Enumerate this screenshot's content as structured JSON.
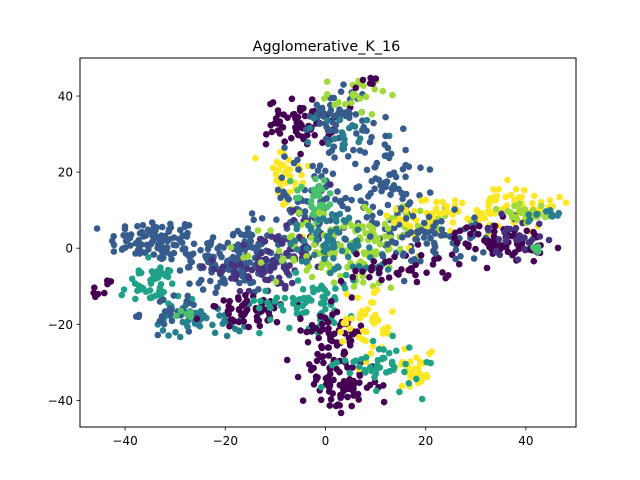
{
  "chart_data": {
    "type": "scatter",
    "title": "Agglomerative_K_16",
    "xlabel": "",
    "ylabel": "",
    "xlim": [
      -49,
      50
    ],
    "ylim": [
      -47,
      50
    ],
    "xticks": [
      -40,
      -20,
      0,
      20,
      40
    ],
    "yticks": [
      -40,
      -20,
      0,
      20,
      40
    ],
    "xtick_labels": [
      "−40",
      "−20",
      "0",
      "20",
      "40"
    ],
    "ytick_labels": [
      "−40",
      "−20",
      "0",
      "20",
      "40"
    ],
    "grid": false,
    "legend": "none",
    "colormap": "viridis",
    "palette": [
      "#440154",
      "#46327e",
      "#365c8d",
      "#277f8e",
      "#1fa187",
      "#4ac16d",
      "#a0da39",
      "#fde725"
    ],
    "clusters": [
      {
        "color": "#365c8d",
        "cx": -34,
        "cy": 2,
        "sx": 4.5,
        "sy": 2.8,
        "n": 90
      },
      {
        "color": "#365c8d",
        "cx": -18,
        "cy": -3,
        "sx": 6,
        "sy": 4.5,
        "n": 170
      },
      {
        "color": "#46327e",
        "cx": -12,
        "cy": -5,
        "sx": 5,
        "sy": 4,
        "n": 60
      },
      {
        "color": "#277f8e",
        "cx": -24,
        "cy": -19,
        "sx": 4.5,
        "sy": 2.2,
        "n": 45
      },
      {
        "color": "#1fa187",
        "cx": -35,
        "cy": -10,
        "sx": 3,
        "sy": 3,
        "n": 45
      },
      {
        "color": "#365c8d",
        "cx": -31,
        "cy": -17,
        "sx": 3,
        "sy": 2.5,
        "n": 25
      },
      {
        "color": "#440154",
        "cx": -45,
        "cy": -10.5,
        "sx": 1,
        "sy": 0.9,
        "n": 8
      },
      {
        "color": "#440154",
        "cx": -14,
        "cy": -17,
        "sx": 5,
        "sy": 2.2,
        "n": 55
      },
      {
        "color": "#4ac16d",
        "cx": -28,
        "cy": -17,
        "sx": 1.2,
        "sy": 1.2,
        "n": 6
      },
      {
        "color": "#440154",
        "cx": -5,
        "cy": 33,
        "sx": 3.3,
        "sy": 3,
        "n": 70
      },
      {
        "color": "#365c8d",
        "cx": 3,
        "cy": 35,
        "sx": 3,
        "sy": 4,
        "n": 55
      },
      {
        "color": "#277f8e",
        "cx": 4,
        "cy": 30,
        "sx": 3,
        "sy": 2.5,
        "n": 20
      },
      {
        "color": "#a0da39",
        "cx": 6,
        "cy": 40,
        "sx": 3,
        "sy": 2.5,
        "n": 22
      },
      {
        "color": "#440154",
        "cx": 8,
        "cy": 43,
        "sx": 1,
        "sy": 1,
        "n": 6
      },
      {
        "color": "#fde725",
        "cx": -8,
        "cy": 18,
        "sx": 2.5,
        "sy": 5,
        "n": 35
      },
      {
        "color": "#365c8d",
        "cx": -3,
        "cy": 12,
        "sx": 5,
        "sy": 6,
        "n": 80
      },
      {
        "color": "#365c8d",
        "cx": 12,
        "cy": 15,
        "sx": 4,
        "sy": 9,
        "n": 90
      },
      {
        "color": "#46327e",
        "cx": -4,
        "cy": 3,
        "sx": 3,
        "sy": 4,
        "n": 40
      },
      {
        "color": "#4ac16d",
        "cx": -2,
        "cy": 13,
        "sx": 2.2,
        "sy": 3.5,
        "n": 30
      },
      {
        "color": "#a0da39",
        "cx": 3,
        "cy": -1,
        "sx": 7,
        "sy": 5,
        "n": 120
      },
      {
        "color": "#277f8e",
        "cx": 6,
        "cy": -3,
        "sx": 4,
        "sy": 3,
        "n": 35
      },
      {
        "color": "#277f8e",
        "cx": 0,
        "cy": 4,
        "sx": 4,
        "sy": 3,
        "n": 40
      },
      {
        "color": "#1fa187",
        "cx": -3,
        "cy": -14,
        "sx": 5,
        "sy": 3.5,
        "n": 70
      },
      {
        "color": "#a0da39",
        "cx": 16,
        "cy": 6,
        "sx": 4,
        "sy": 3,
        "n": 35
      },
      {
        "color": "#440154",
        "cx": 2,
        "cy": -22,
        "sx": 3,
        "sy": 3.5,
        "n": 60
      },
      {
        "color": "#440154",
        "cx": 3,
        "cy": -36,
        "sx": 3.8,
        "sy": 3.5,
        "n": 80
      },
      {
        "color": "#fde725",
        "cx": 8,
        "cy": -20,
        "sx": 3,
        "sy": 5,
        "n": 45
      },
      {
        "color": "#fde725",
        "cx": 18,
        "cy": -31,
        "sx": 2,
        "sy": 3,
        "n": 30
      },
      {
        "color": "#1fa187",
        "cx": 11,
        "cy": -31,
        "sx": 4,
        "sy": 3,
        "n": 45
      },
      {
        "color": "#440154",
        "cx": 15,
        "cy": -5,
        "sx": 6,
        "sy": 2.5,
        "n": 40
      },
      {
        "color": "#fde725",
        "cx": 26,
        "cy": 8,
        "sx": 8,
        "sy": 3,
        "n": 70
      },
      {
        "color": "#fde725",
        "cx": 40,
        "cy": 12,
        "sx": 4,
        "sy": 2.5,
        "n": 35
      },
      {
        "color": "#365c8d",
        "cx": 22,
        "cy": 3,
        "sx": 6,
        "sy": 3,
        "n": 70
      },
      {
        "color": "#440154",
        "cx": 35,
        "cy": 2,
        "sx": 4.5,
        "sy": 2.2,
        "n": 70
      },
      {
        "color": "#46327e",
        "cx": 38,
        "cy": 4,
        "sx": 3,
        "sy": 3,
        "n": 30
      },
      {
        "color": "#a0da39",
        "cx": 40,
        "cy": 9,
        "sx": 3,
        "sy": 2,
        "n": 25
      },
      {
        "color": "#4ac16d",
        "cx": 42,
        "cy": 0,
        "sx": 1,
        "sy": 0.8,
        "n": 4
      },
      {
        "color": "#277f8e",
        "cx": 43,
        "cy": 8,
        "sx": 2,
        "sy": 1.5,
        "n": 12
      }
    ]
  }
}
